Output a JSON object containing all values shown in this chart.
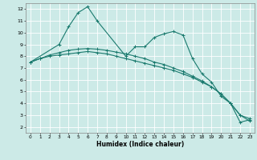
{
  "background_color": "#cceae7",
  "grid_color": "#ffffff",
  "line_color": "#1a7a6e",
  "xlabel": "Humidex (Indice chaleur)",
  "xlim": [
    -0.5,
    23.5
  ],
  "ylim": [
    1.5,
    12.5
  ],
  "yticks": [
    2,
    3,
    4,
    5,
    6,
    7,
    8,
    9,
    10,
    11,
    12
  ],
  "xticks": [
    0,
    1,
    2,
    3,
    4,
    5,
    6,
    7,
    8,
    9,
    10,
    11,
    12,
    13,
    14,
    15,
    16,
    17,
    18,
    19,
    20,
    21,
    22,
    23
  ],
  "series1_x": [
    0,
    1,
    2,
    3,
    4,
    5,
    6,
    7,
    8,
    9,
    10,
    11,
    12,
    13,
    14,
    15,
    16,
    17,
    18,
    19,
    20,
    21,
    22,
    23
  ],
  "series1_y": [
    7.5,
    7.8,
    8.0,
    8.1,
    8.2,
    8.3,
    8.4,
    8.3,
    8.2,
    8.0,
    7.8,
    7.6,
    7.4,
    7.2,
    7.0,
    6.8,
    6.5,
    6.2,
    5.8,
    5.4,
    4.8,
    4.0,
    3.0,
    2.5
  ],
  "series2_x": [
    0,
    1,
    2,
    3,
    4,
    5,
    6,
    7,
    8,
    9,
    10,
    11,
    12,
    13,
    14,
    15,
    16,
    17,
    18,
    19,
    20,
    21,
    22,
    23
  ],
  "series2_y": [
    7.5,
    7.8,
    8.1,
    8.3,
    8.5,
    8.6,
    8.65,
    8.6,
    8.5,
    8.35,
    8.2,
    8.0,
    7.8,
    7.5,
    7.3,
    7.0,
    6.7,
    6.3,
    5.9,
    5.4,
    4.8,
    4.0,
    3.0,
    2.7
  ],
  "series3_x": [
    0,
    3,
    4,
    5,
    6,
    7,
    10,
    11,
    12,
    13,
    14,
    15,
    16,
    17,
    18,
    19,
    20,
    21,
    22,
    23
  ],
  "series3_y": [
    7.5,
    9.0,
    10.5,
    11.7,
    12.2,
    11.0,
    8.0,
    8.8,
    8.8,
    9.6,
    9.9,
    10.1,
    9.8,
    7.8,
    6.5,
    5.8,
    4.6,
    4.0,
    2.4,
    2.6
  ]
}
